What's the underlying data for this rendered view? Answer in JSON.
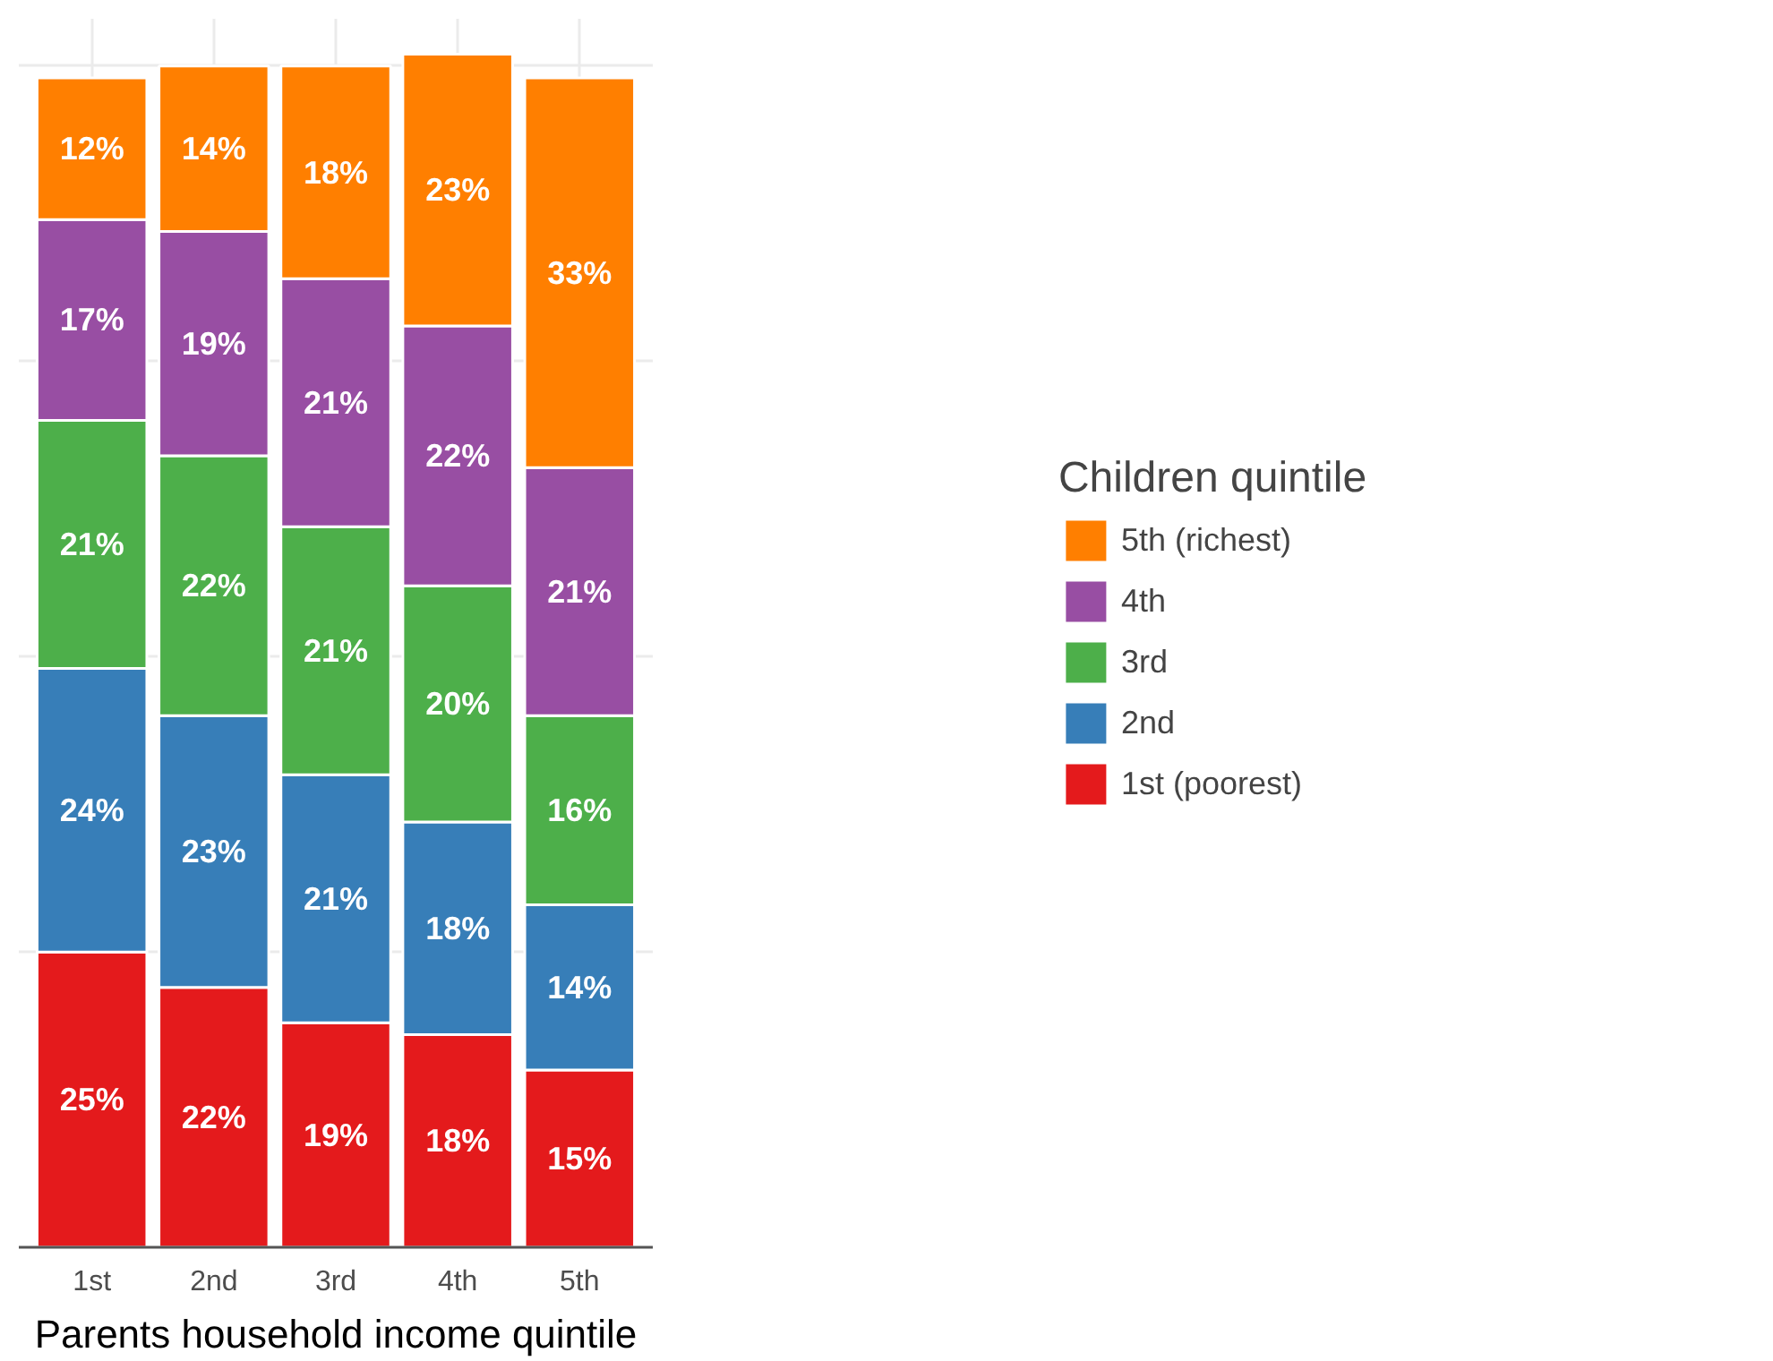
{
  "chart_data": {
    "type": "bar",
    "stacked": true,
    "xlabel": "Parents household income quintile",
    "legend_title": "Children quintile",
    "categories": [
      "1st",
      "2nd",
      "3rd",
      "4th",
      "5th"
    ],
    "series": [
      {
        "name": "1st (poorest)",
        "color": "#e41a1c",
        "values": [
          25,
          22,
          19,
          18,
          15
        ],
        "value_labels": [
          "25%",
          "22%",
          "19%",
          "18%",
          "15%"
        ]
      },
      {
        "name": "2nd",
        "color": "#377eb8",
        "values": [
          24,
          23,
          21,
          18,
          14
        ],
        "value_labels": [
          "24%",
          "23%",
          "21%",
          "18%",
          "14%"
        ]
      },
      {
        "name": "3rd",
        "color": "#4daf4a",
        "values": [
          21,
          22,
          21,
          20,
          16
        ],
        "value_labels": [
          "21%",
          "22%",
          "21%",
          "20%",
          "16%"
        ]
      },
      {
        "name": "4th",
        "color": "#984ea3",
        "values": [
          17,
          19,
          21,
          22,
          21
        ],
        "value_labels": [
          "17%",
          "19%",
          "21%",
          "22%",
          "21%"
        ]
      },
      {
        "name": "5th (richest)",
        "color": "#ff7f00",
        "values": [
          12,
          14,
          18,
          23,
          33
        ],
        "value_labels": [
          "12%",
          "14%",
          "18%",
          "23%",
          "33%"
        ]
      }
    ],
    "ylim": [
      0,
      104
    ],
    "yticks": [
      {
        "value": 0,
        "label": null
      },
      {
        "value": 25,
        "label": null
      },
      {
        "value": 50,
        "label": null
      },
      {
        "value": 75,
        "label": null
      },
      {
        "value": 100,
        "label": null
      }
    ],
    "tick_labels": "x",
    "grid": true,
    "legend": "right"
  }
}
